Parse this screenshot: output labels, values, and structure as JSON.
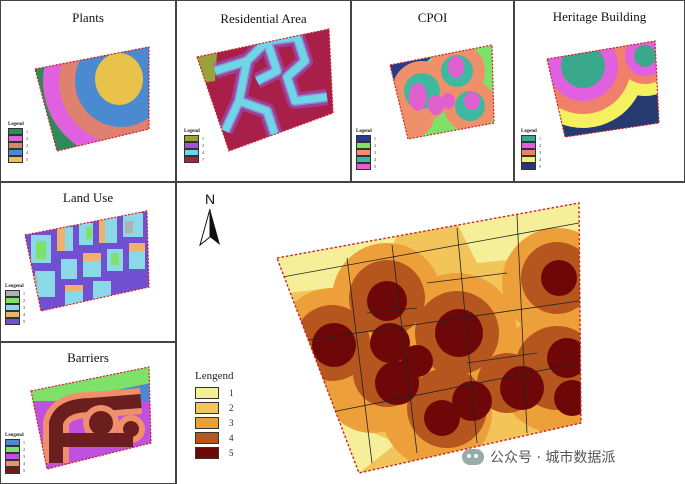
{
  "panels": {
    "plants": {
      "title": "Plants",
      "legend_title": "Legend",
      "items": [
        {
          "label": "1",
          "color": "#2e8b57"
        },
        {
          "label": "2",
          "color": "#e060e0"
        },
        {
          "label": "3",
          "color": "#e0806e"
        },
        {
          "label": "4",
          "color": "#4a8ad0"
        },
        {
          "label": "5",
          "color": "#e8c24a"
        }
      ]
    },
    "residential": {
      "title": "Residential Area",
      "legend_title": "Legend",
      "items": [
        {
          "label": "1",
          "color": "#9aa23c"
        },
        {
          "label": "3",
          "color": "#9b59d0"
        },
        {
          "label": "4",
          "color": "#6fd6e6"
        },
        {
          "label": "7",
          "color": "#a8204a"
        }
      ]
    },
    "cpoi": {
      "title": "CPOI",
      "legend_title": "Legend",
      "items": [
        {
          "label": "1",
          "color": "#2a3a8a"
        },
        {
          "label": "2",
          "color": "#7ee26a"
        },
        {
          "label": "3",
          "color": "#f0906a"
        },
        {
          "label": "4",
          "color": "#3fb8a0"
        },
        {
          "label": "5",
          "color": "#e060d0"
        }
      ]
    },
    "heritage": {
      "title": "Heritage Building",
      "legend_title": "Legend",
      "items": [
        {
          "label": "1",
          "color": "#3aa88a"
        },
        {
          "label": "2",
          "color": "#e060e0"
        },
        {
          "label": "3",
          "color": "#f0806a"
        },
        {
          "label": "4",
          "color": "#f4f060"
        },
        {
          "label": "5",
          "color": "#243a70"
        }
      ]
    },
    "landuse": {
      "title": "Land Use",
      "legend_title": "Lengend",
      "items": [
        {
          "label": "1",
          "color": "#b0b0b0"
        },
        {
          "label": "2",
          "color": "#7ee26a"
        },
        {
          "label": "3",
          "color": "#8ad8e8"
        },
        {
          "label": "4",
          "color": "#f0b070"
        },
        {
          "label": "5",
          "color": "#7050d0"
        }
      ]
    },
    "barriers": {
      "title": "Barriers",
      "legend_title": "Lengend",
      "items": [
        {
          "label": "1",
          "color": "#4a8ad0"
        },
        {
          "label": "2",
          "color": "#7ee26a"
        },
        {
          "label": "3",
          "color": "#c050e0"
        },
        {
          "label": "4",
          "color": "#f0906a"
        },
        {
          "label": "5",
          "color": "#6a1e1e"
        }
      ]
    }
  },
  "main": {
    "north_label": "N",
    "legend_title": "Lengend",
    "items": [
      {
        "label": "1",
        "color": "#f6ef9a"
      },
      {
        "label": "2",
        "color": "#f2c45a"
      },
      {
        "label": "3",
        "color": "#eda03a"
      },
      {
        "label": "4",
        "color": "#b5561e"
      },
      {
        "label": "5",
        "color": "#6e0808"
      }
    ]
  },
  "watermark": "公众号 · 城市数据派"
}
